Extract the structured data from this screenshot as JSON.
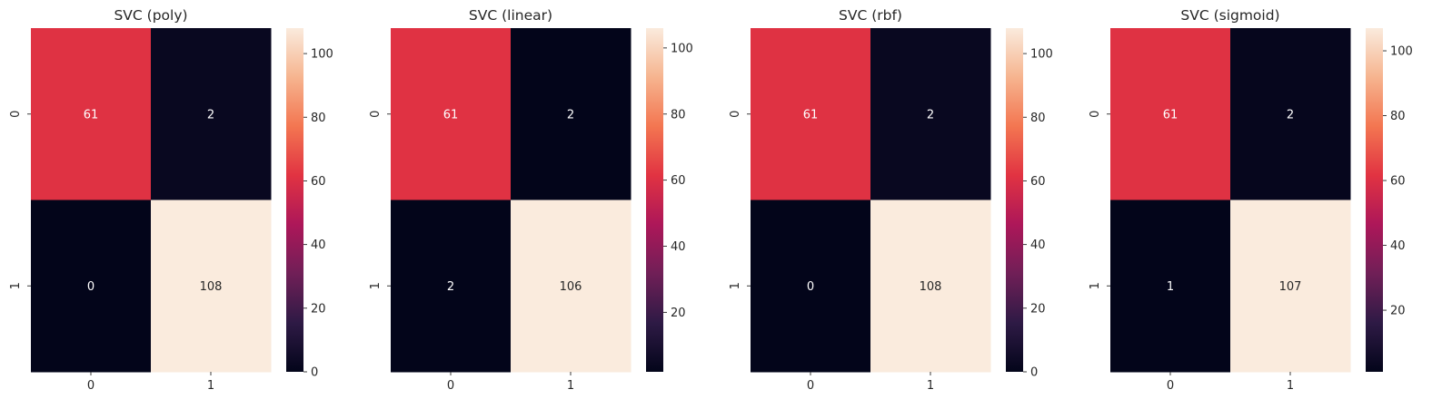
{
  "colormap": {
    "name": "rocket",
    "stops": [
      "#03051a",
      "#2e1a45",
      "#701f57",
      "#ad1759",
      "#e13342",
      "#f37651",
      "#f6b48f",
      "#faebdd"
    ]
  },
  "annotation_colors": {
    "light": "#ffffff",
    "dark": "#262626"
  },
  "chart_data": [
    {
      "type": "heatmap",
      "title": "SVC (poly)",
      "x_categories": [
        "0",
        "1"
      ],
      "y_categories": [
        "0",
        "1"
      ],
      "values": [
        [
          61,
          2
        ],
        [
          0,
          108
        ]
      ],
      "annot": true,
      "colorbar": {
        "vmin": 0,
        "vmax": 108,
        "ticks": [
          0,
          20,
          40,
          60,
          80,
          100
        ]
      },
      "xlabel": "",
      "ylabel": ""
    },
    {
      "type": "heatmap",
      "title": "SVC (linear)",
      "x_categories": [
        "0",
        "1"
      ],
      "y_categories": [
        "0",
        "1"
      ],
      "values": [
        [
          61,
          2
        ],
        [
          2,
          106
        ]
      ],
      "annot": true,
      "colorbar": {
        "vmin": 2,
        "vmax": 106,
        "ticks": [
          20,
          40,
          60,
          80,
          100
        ]
      },
      "xlabel": "",
      "ylabel": ""
    },
    {
      "type": "heatmap",
      "title": "SVC (rbf)",
      "x_categories": [
        "0",
        "1"
      ],
      "y_categories": [
        "0",
        "1"
      ],
      "values": [
        [
          61,
          2
        ],
        [
          0,
          108
        ]
      ],
      "annot": true,
      "colorbar": {
        "vmin": 0,
        "vmax": 108,
        "ticks": [
          0,
          20,
          40,
          60,
          80,
          100
        ]
      },
      "xlabel": "",
      "ylabel": ""
    },
    {
      "type": "heatmap",
      "title": "SVC (sigmoid)",
      "x_categories": [
        "0",
        "1"
      ],
      "y_categories": [
        "0",
        "1"
      ],
      "values": [
        [
          61,
          2
        ],
        [
          1,
          107
        ]
      ],
      "annot": true,
      "colorbar": {
        "vmin": 1,
        "vmax": 107,
        "ticks": [
          20,
          40,
          60,
          80,
          100
        ]
      },
      "xlabel": "",
      "ylabel": ""
    }
  ]
}
